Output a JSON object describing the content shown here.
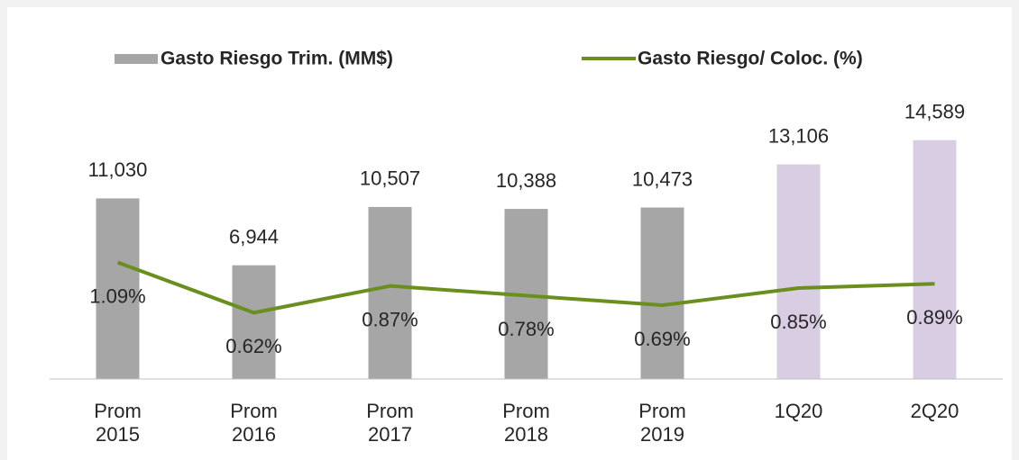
{
  "chart_data": {
    "type": "bar_line",
    "categories": [
      "Prom 2015",
      "Prom 2016",
      "Prom 2017",
      "Prom 2018",
      "Prom 2019",
      "1Q20",
      "2Q20"
    ],
    "series": [
      {
        "name": "Gasto Riesgo Trim. (MM$)",
        "type": "bar",
        "color": "#a6a6a6",
        "colors": [
          "#a6a6a6",
          "#a6a6a6",
          "#a6a6a6",
          "#a6a6a6",
          "#a6a6a6",
          "#d9cde3",
          "#d9cde3"
        ],
        "values": [
          11030,
          6944,
          10507,
          10388,
          10473,
          13106,
          14589
        ],
        "value_labels": [
          "11,030",
          "6,944",
          "10,507",
          "10,388",
          "10,473",
          "13,106",
          "14,589"
        ]
      },
      {
        "name": "Gasto Riesgo/ Coloc. (%)",
        "type": "line",
        "axis": "y2",
        "color": "#6a8f1e",
        "values": [
          1.09,
          0.62,
          0.87,
          0.78,
          0.69,
          0.85,
          0.89
        ],
        "value_labels": [
          "1.09%",
          "0.62%",
          "0.87%",
          "0.78%",
          "0.69%",
          "0.85%",
          "0.89%"
        ]
      }
    ],
    "ylim": [
      0,
      16000
    ],
    "y2lim": [
      0,
      2.45
    ],
    "grid": false
  }
}
